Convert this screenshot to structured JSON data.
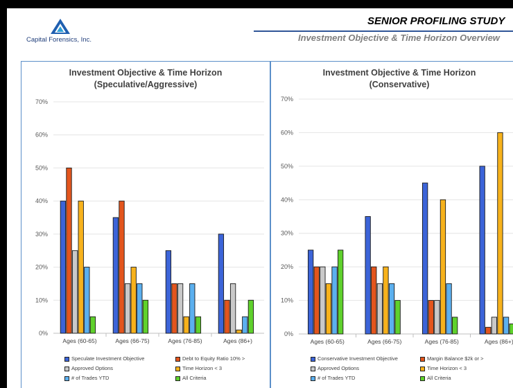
{
  "header": {
    "company": "Capital Forensics, Inc.",
    "title": "SENIOR PROFILING STUDY",
    "subtitle": "Investment Objective & Time Horizon Overview"
  },
  "colors": [
    "#3c64d8",
    "#e3551d",
    "#c9c9c9",
    "#f7b21c",
    "#5cb0ef",
    "#5fd12c"
  ],
  "chart_data": [
    {
      "type": "bar",
      "title": "Investment Objective & Time Horizon",
      "subtitle": "(Speculative/Aggressive)",
      "categories": [
        "Ages (60-65)",
        "Ages (66-75)",
        "Ages (76-85)",
        "Ages (86+)"
      ],
      "ylim": [
        0,
        70
      ],
      "yticks": [
        "0%",
        "10%",
        "20%",
        "30%",
        "40%",
        "50%",
        "60%",
        "70%"
      ],
      "grid": true,
      "legend_position": "bottom",
      "series": [
        {
          "name": "Speculate Investment Objective",
          "values": [
            40,
            35,
            25,
            30
          ]
        },
        {
          "name": "Debt to Equity Ratio 10% >",
          "values": [
            50,
            40,
            15,
            10
          ]
        },
        {
          "name": "Approved Options",
          "values": [
            25,
            15,
            15,
            15
          ]
        },
        {
          "name": "Time Horizon < 3",
          "values": [
            40,
            20,
            5,
            1
          ]
        },
        {
          "name": "# of Trades YTD",
          "values": [
            20,
            15,
            15,
            5
          ]
        },
        {
          "name": "All Criteria",
          "values": [
            5,
            10,
            5,
            10
          ]
        }
      ]
    },
    {
      "type": "bar",
      "title": "Investment Objective & Time Horizon",
      "subtitle": "(Conservative)",
      "categories": [
        "Ages (60-65)",
        "Ages (66-75)",
        "Ages (76-85)",
        "Ages (86+)"
      ],
      "ylim": [
        0,
        70
      ],
      "yticks": [
        "0%",
        "10%",
        "20%",
        "30%",
        "40%",
        "50%",
        "60%",
        "70%"
      ],
      "grid": true,
      "legend_position": "bottom",
      "series": [
        {
          "name": "Conservative Investment Objective",
          "values": [
            25,
            35,
            45,
            50
          ]
        },
        {
          "name": "Margin Balance $2k or >",
          "values": [
            20,
            20,
            10,
            2
          ]
        },
        {
          "name": "Approved Options",
          "values": [
            20,
            15,
            10,
            5
          ]
        },
        {
          "name": "Time Horizon < 3",
          "values": [
            15,
            20,
            40,
            60
          ]
        },
        {
          "name": "# of Trades YTD",
          "values": [
            20,
            15,
            15,
            5
          ]
        },
        {
          "name": "All Criteria",
          "values": [
            25,
            10,
            5,
            3
          ]
        }
      ]
    }
  ]
}
